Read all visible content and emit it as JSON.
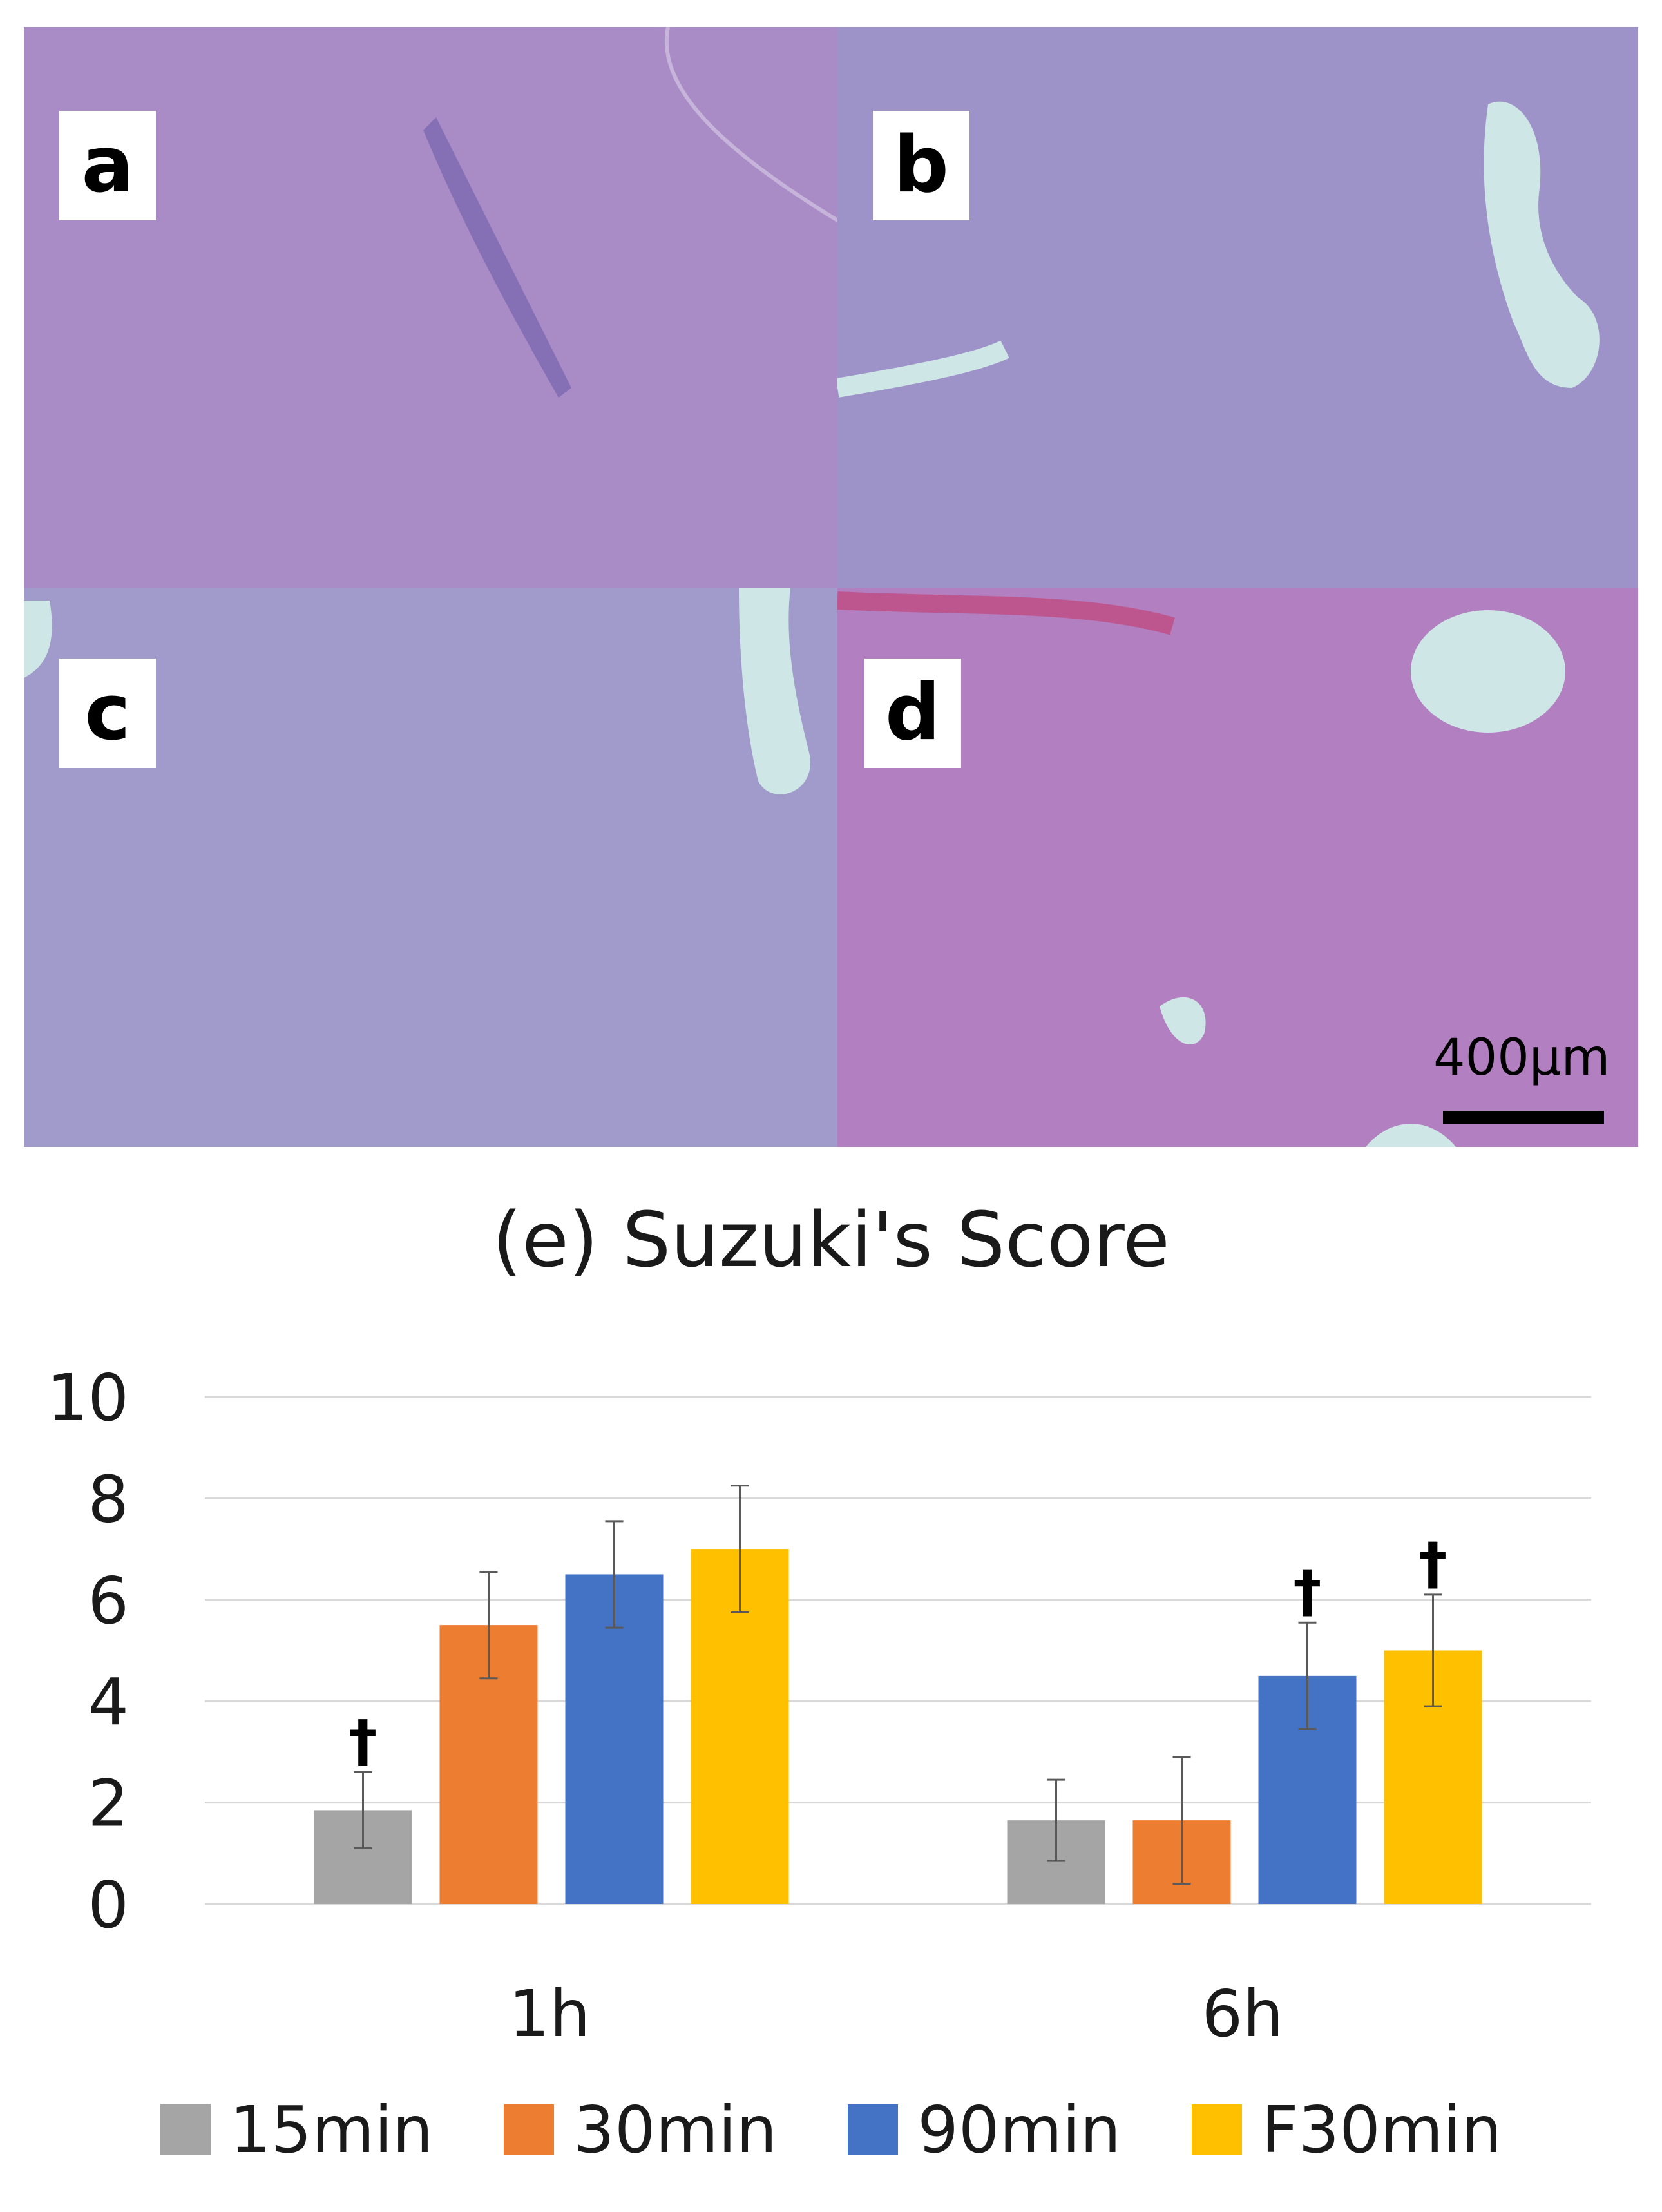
{
  "panels": [
    {
      "label": "a",
      "tone": "#a98cc6"
    },
    {
      "label": "b",
      "tone": "#9e93c8"
    },
    {
      "label": "c",
      "tone": "#a09bcb"
    },
    {
      "label": "d",
      "tone": "#b27fc0"
    }
  ],
  "scale_bar": {
    "text": "400μm"
  },
  "colors": {
    "15min": "#a5a5a5",
    "30min": "#ed7d31",
    "90min": "#4472c4",
    "F30min": "#ffc000",
    "grid": "#d9d9d9",
    "axis_text": "#1a1a1a",
    "error_bar": "#595959"
  },
  "chart_data": {
    "type": "bar",
    "title": "(e) Suzuki's Score",
    "categories": [
      "1h",
      "6h"
    ],
    "ylim": [
      0,
      10
    ],
    "yticks": [
      0,
      2,
      4,
      6,
      8,
      10
    ],
    "grid": true,
    "legend_position": "bottom",
    "series": [
      {
        "name": "15min",
        "values": [
          1.85,
          1.65
        ],
        "errors": [
          0.75,
          0.8
        ],
        "markers": [
          "†",
          ""
        ]
      },
      {
        "name": "30min",
        "values": [
          5.5,
          1.65
        ],
        "errors": [
          1.05,
          1.25
        ],
        "markers": [
          "",
          ""
        ]
      },
      {
        "name": "90min",
        "values": [
          6.5,
          4.5
        ],
        "errors": [
          1.05,
          1.05
        ],
        "markers": [
          "",
          "†"
        ]
      },
      {
        "name": "F30min",
        "values": [
          7.0,
          5.0
        ],
        "errors": [
          1.25,
          1.1
        ],
        "markers": [
          "",
          "†"
        ]
      }
    ]
  }
}
